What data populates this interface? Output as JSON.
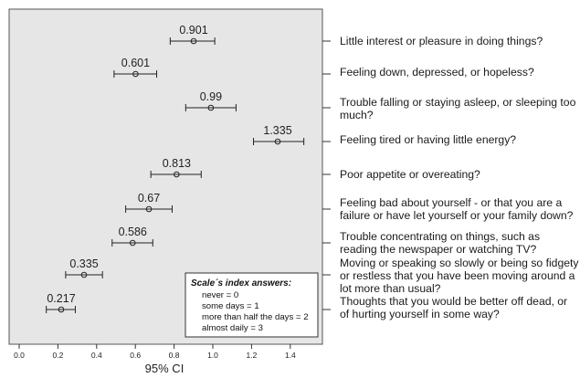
{
  "chart_data": {
    "type": "scatter",
    "subtype": "forest-plot",
    "xlabel": "95% CI",
    "xlim": [
      -0.05,
      1.6
    ],
    "xticks": [
      "0.0",
      "0.2",
      "0.4",
      "0.6",
      "0.8",
      "1.0",
      "1.2",
      "1.4"
    ],
    "grid": false,
    "points": [
      {
        "item": "Little interest or pleasure in doing things?",
        "value": 0.901,
        "label": "0.901",
        "ci_low": 0.78,
        "ci_high": 1.01
      },
      {
        "item": "Feeling down, depressed, or hopeless?",
        "value": 0.601,
        "label": "0.601",
        "ci_low": 0.49,
        "ci_high": 0.71
      },
      {
        "item": "Trouble falling or staying asleep, or sleeping too much?",
        "value": 0.99,
        "label": "0.99",
        "ci_low": 0.86,
        "ci_high": 1.12
      },
      {
        "item": "Feeling tired or having little energy?",
        "value": 1.335,
        "label": "1.335",
        "ci_low": 1.21,
        "ci_high": 1.47
      },
      {
        "item": "Poor appetite or overeating?",
        "value": 0.813,
        "label": "0.813",
        "ci_low": 0.68,
        "ci_high": 0.94
      },
      {
        "item": "Feeling bad about yourself - or that you are a failure or have let yourself or your family down?",
        "value": 0.67,
        "label": "0.67",
        "ci_low": 0.55,
        "ci_high": 0.79
      },
      {
        "item": "Trouble concentrating on things, such as reading the newspaper or watching TV?",
        "value": 0.586,
        "label": "0.586",
        "ci_low": 0.48,
        "ci_high": 0.69
      },
      {
        "item": "Moving or speaking so slowly or being so fidgety or restless that you have been moving around a lot more than usual?",
        "value": 0.335,
        "label": "0.335",
        "ci_low": 0.24,
        "ci_high": 0.43
      },
      {
        "item": "Thoughts that you would be better off dead, or of hurting yourself in some way?",
        "value": 0.217,
        "label": "0.217",
        "ci_low": 0.14,
        "ci_high": 0.29
      }
    ],
    "legend": {
      "title": "Scale´s index answers:",
      "lines": [
        "never = 0",
        "some days = 1",
        "more than half the days = 2",
        "almost daily = 3"
      ],
      "position": "bottom-right"
    }
  },
  "colors": {
    "panel": "#e6e6e6",
    "ink": "#222222",
    "frame": "#555555"
  }
}
